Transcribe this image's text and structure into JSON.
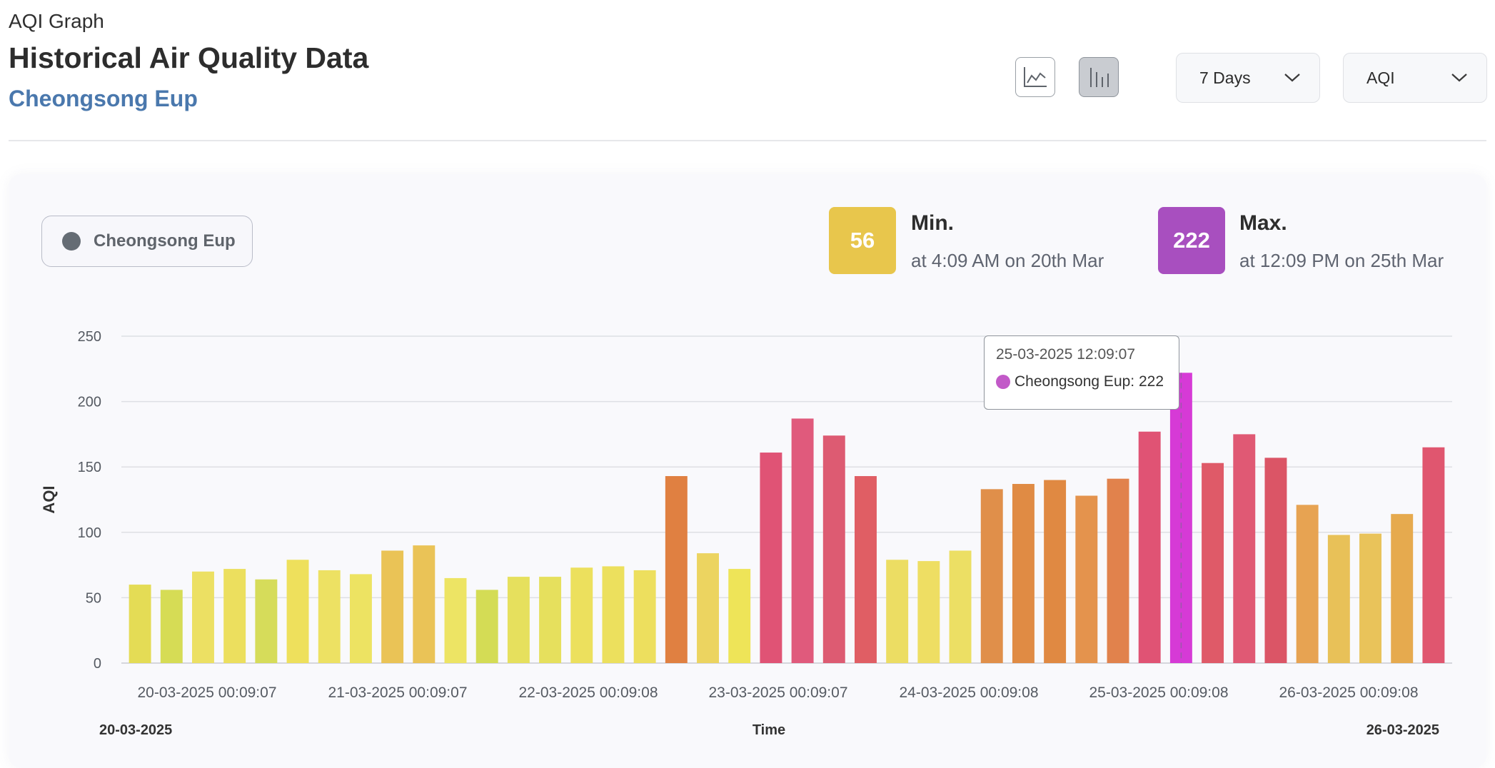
{
  "header": {
    "label": "AQI Graph",
    "title": "Historical Air Quality Data",
    "location": "Cheongsong Eup"
  },
  "toolbar": {
    "line_view_icon": "line-chart-icon",
    "bar_view_icon": "bar-chart-icon",
    "active_view": "bar",
    "range_value": "7 Days",
    "metric_value": "AQI"
  },
  "legend": {
    "label": "Cheongsong Eup",
    "color": "#656c74"
  },
  "stats": {
    "min": {
      "value": "56",
      "title": "Min.",
      "subtitle": "at 4:09 AM on 20th Mar",
      "color": "#e8c64c"
    },
    "max": {
      "value": "222",
      "title": "Max.",
      "subtitle": "at 12:09 PM on 25th Mar",
      "color": "#a84fbf"
    }
  },
  "tooltip": {
    "time": "25-03-2025 12:09:07",
    "series_label": "Cheongsong Eup: 222",
    "color": "#c259c8"
  },
  "chart_data": {
    "type": "bar",
    "ylabel": "AQI",
    "xlabel": "Time",
    "ylim": [
      0,
      250
    ],
    "yticks": [
      0,
      50,
      100,
      150,
      200,
      250
    ],
    "grid": true,
    "x_ticks": [
      "20-03-2025 00:09:07",
      "21-03-2025 00:09:07",
      "22-03-2025 00:09:08",
      "23-03-2025 00:09:07",
      "24-03-2025 00:09:08",
      "25-03-2025 00:09:08",
      "26-03-2025 00:09:08"
    ],
    "range_start": "20-03-2025",
    "range_end": "26-03-2025",
    "highlight_index": 33,
    "series": [
      {
        "name": "Cheongsong Eup",
        "values": [
          60,
          56,
          70,
          72,
          64,
          79,
          71,
          68,
          86,
          90,
          65,
          56,
          66,
          66,
          73,
          74,
          71,
          143,
          84,
          72,
          161,
          187,
          174,
          143,
          79,
          78,
          86,
          133,
          137,
          140,
          128,
          141,
          177,
          222,
          153,
          175,
          157,
          121,
          98,
          99,
          114,
          165
        ],
        "colors": [
          "#e4dc55",
          "#d6dc55",
          "#ece063",
          "#ecdf5e",
          "#d6dc5a",
          "#eee05c",
          "#ede163",
          "#ede362",
          "#eac356",
          "#eac357",
          "#ede464",
          "#d4dc55",
          "#e6e05d",
          "#e6e05d",
          "#ece05d",
          "#ece05d",
          "#eddf5e",
          "#e08041",
          "#ecd460",
          "#eee458",
          "#e05375",
          "#e05a7c",
          "#dd5b72",
          "#e05e64",
          "#ecdd63",
          "#eede63",
          "#ecdf64",
          "#e08f4a",
          "#e08b44",
          "#e08942",
          "#e4934d",
          "#e1824c",
          "#e05374",
          "#d63ad6",
          "#df5a68",
          "#e05974",
          "#db5566",
          "#e7a352",
          "#e8c158",
          "#e9c35a",
          "#e6aa4e",
          "#e0566f"
        ]
      }
    ]
  }
}
